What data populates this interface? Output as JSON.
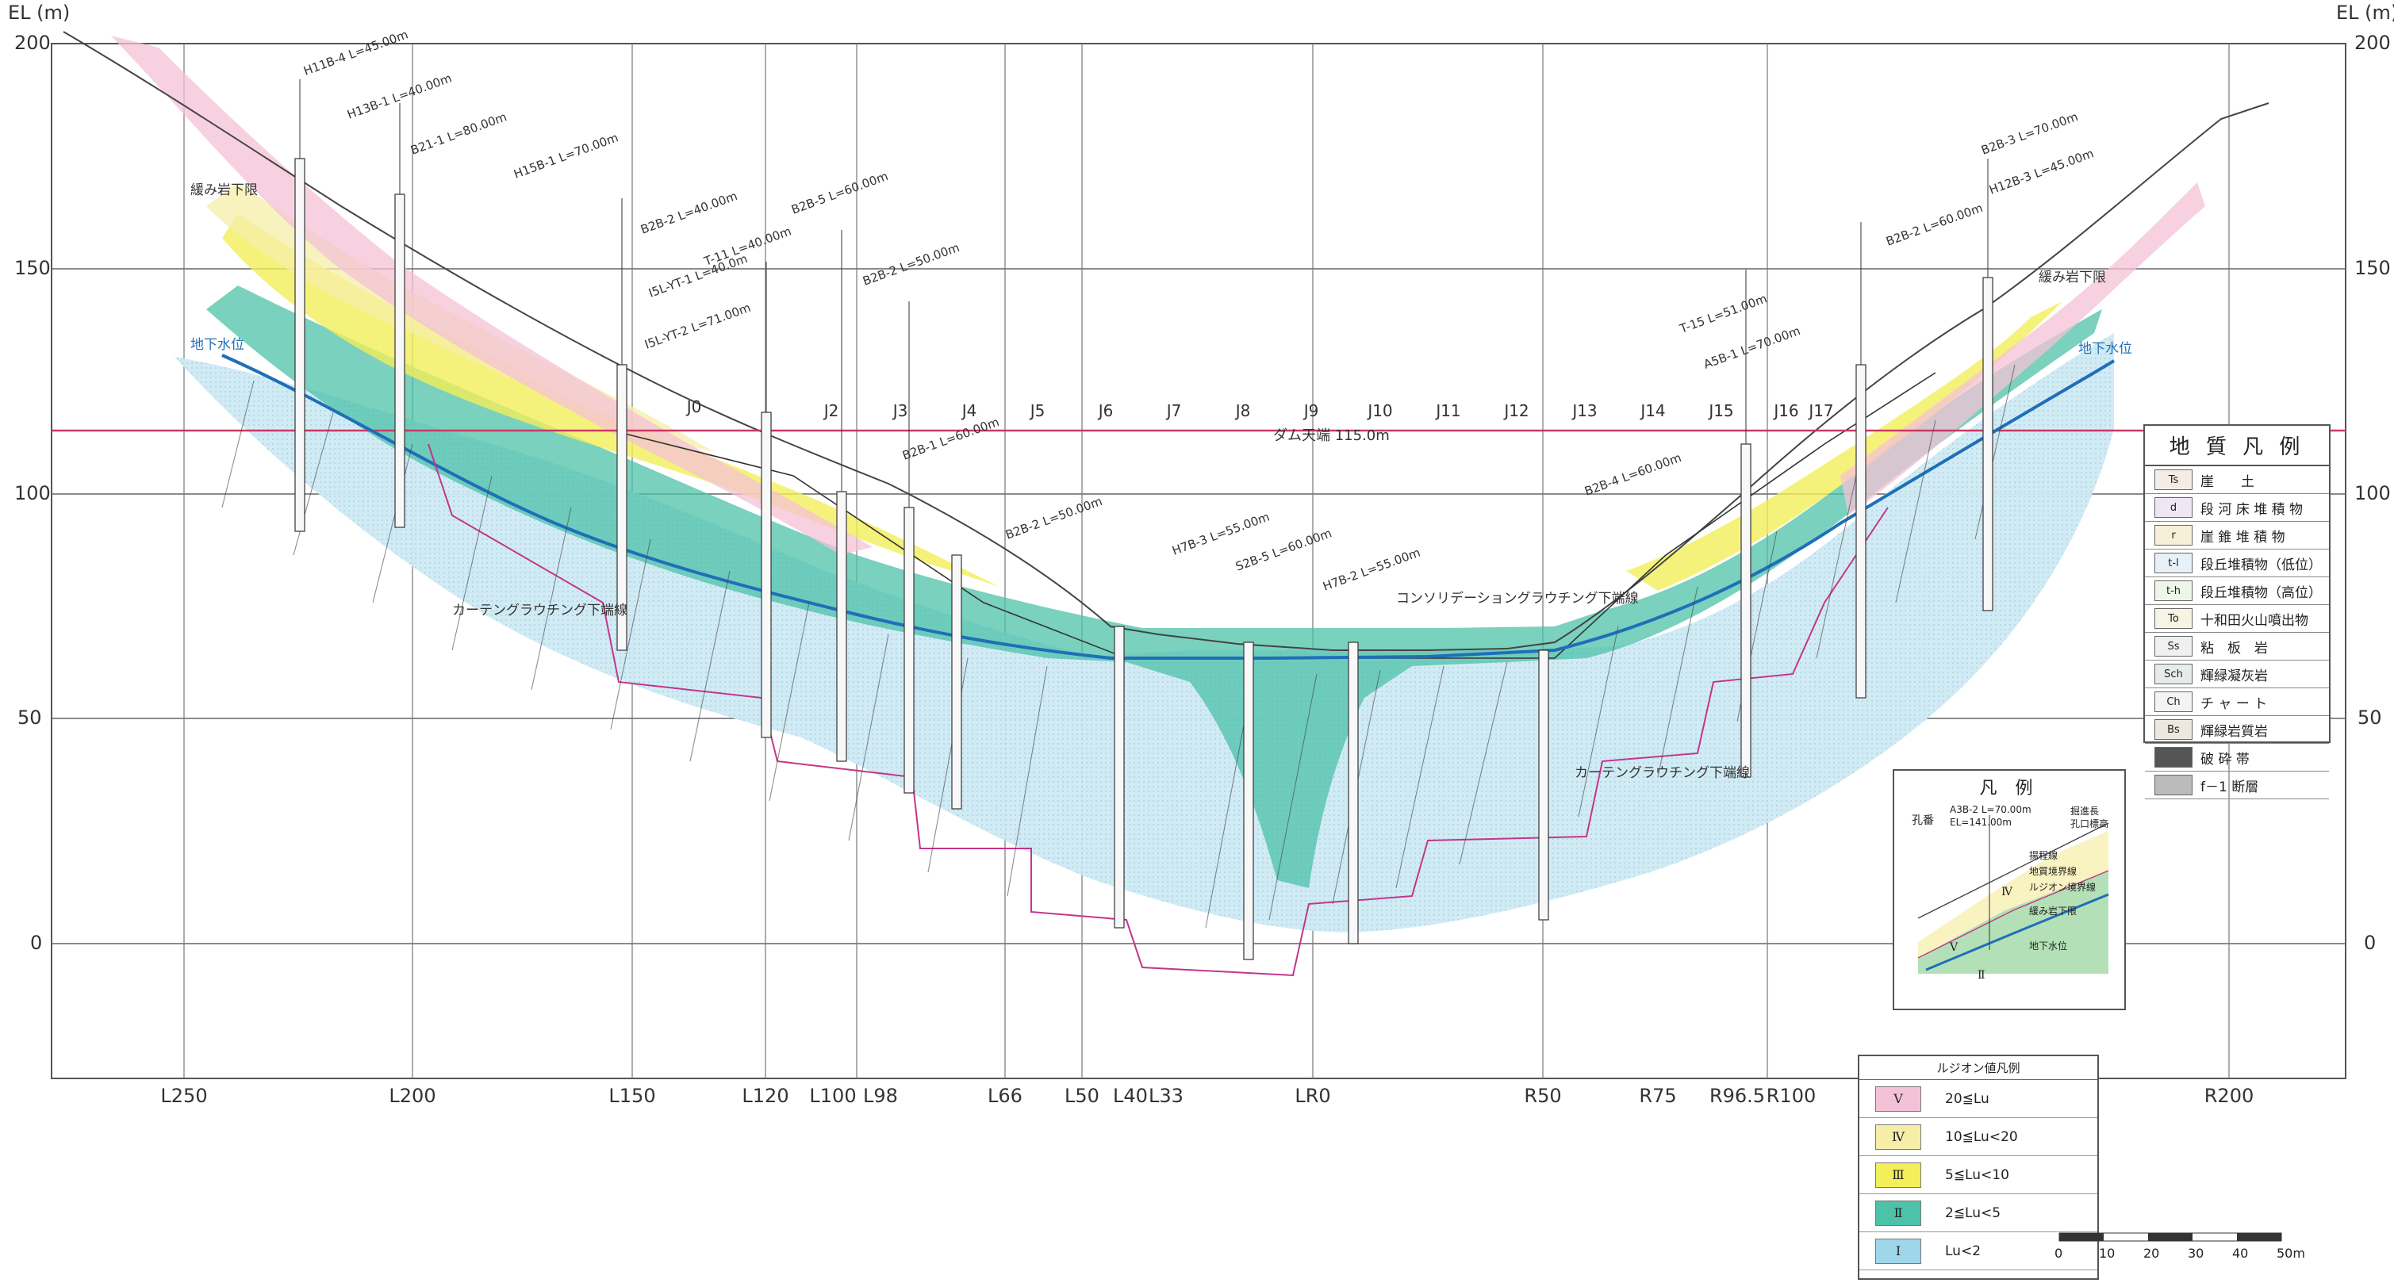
{
  "axis": {
    "unit_label": "EL (m)",
    "ticks": [
      "200",
      "150",
      "100",
      "50",
      "0"
    ]
  },
  "stations": [
    "L250",
    "L200",
    "L150",
    "L120",
    "L100",
    "L98",
    "L66",
    "L50",
    "L40",
    "L33",
    "LR0",
    "R50",
    "R75",
    "R96.5",
    "R100",
    "R200"
  ],
  "joints": [
    "J0",
    "J2",
    "J3",
    "J4",
    "J5",
    "J6",
    "J7",
    "J8",
    "J9",
    "J10",
    "J11",
    "J12",
    "J13",
    "J14",
    "J15",
    "J16",
    "J17"
  ],
  "dam_crest_label": "ダム天端 115.0m",
  "annotations": {
    "left_curtain": "カーテングラウチング下端線",
    "right_curtain": "カーテングラウチング下端線",
    "consolidation": "コンソリデーショングラウチング下端線",
    "groundwater_left": "地下水位",
    "groundwater_right": "地下水位",
    "loose_left": "緩み岩下限",
    "loose_right": "緩み岩下限"
  },
  "geo_legend": {
    "title": "地 質 凡 例",
    "rows": [
      {
        "sym": "Ts",
        "label": "崖　　土",
        "color": "#f4ece6"
      },
      {
        "sym": "d",
        "label": "段 河 床 堆 積 物",
        "color": "#efe6f4"
      },
      {
        "sym": "r",
        "label": "崖 錐 堆 積 物",
        "color": "#f6f0d8"
      },
      {
        "sym": "t-l",
        "label": "段丘堆積物（低位）",
        "color": "#e8f0f8"
      },
      {
        "sym": "t-h",
        "label": "段丘堆積物（高位）",
        "color": "#eef6e8"
      },
      {
        "sym": "To",
        "label": "十和田火山噴出物",
        "color": "#f8f4e4"
      },
      {
        "sym": "Ss",
        "label": "粘　板　岩",
        "color": "#f0f0f0"
      },
      {
        "sym": "Sch",
        "label": "輝緑凝灰岩",
        "color": "#e6ece8"
      },
      {
        "sym": "Ch",
        "label": "チ ャ ー ト",
        "color": "#f4f4f4"
      },
      {
        "sym": "Bs",
        "label": "輝緑岩質岩",
        "color": "#ece8e0"
      },
      {
        "sym": "",
        "label": "破 砕 帯",
        "color": "#555555"
      },
      {
        "sym": "",
        "label": "f－1 断層",
        "color": "#bbbbbb"
      }
    ]
  },
  "sample_legend": {
    "title": "凡 例",
    "hole_label": "孔番",
    "hole_sample": "A3B-2 L=70.00m",
    "elev_sample": "EL=141.00m",
    "length_label": "掘進長",
    "elev_label": "孔口標高",
    "lines": [
      "揚程線",
      "地質境界線",
      "ルジオン境界線",
      "緩み岩下限",
      "地下水位"
    ],
    "numeral_iv": "Ⅳ",
    "numeral_v": "Ⅴ",
    "numeral_ii": "Ⅱ"
  },
  "lu_legend": {
    "title": "ルジオン値凡例",
    "rows": [
      {
        "num": "Ⅴ",
        "text": "20≦Lu",
        "color": "#f4c2d6"
      },
      {
        "num": "Ⅳ",
        "text": "10≦Lu<20",
        "color": "#f6eea8"
      },
      {
        "num": "Ⅲ",
        "text": "5≦Lu<10",
        "color": "#f2ef5a"
      },
      {
        "num": "Ⅱ",
        "text": "2≦Lu<5",
        "color": "#4cc2a8"
      },
      {
        "num": "Ⅰ",
        "text": "Lu<2",
        "color": "#9fd6ea"
      }
    ]
  },
  "scale": {
    "labels": [
      "0",
      "10",
      "20",
      "30",
      "40",
      "50m"
    ]
  },
  "borehole_labels": [
    "H11B-4 L=45.00m",
    "H13B-1 L=40.00m",
    "B21-1 L=80.00m",
    "H15B-1 L=70.00m",
    "B2B-2 L=40.00m",
    "T-11 L=40.00m",
    "I5L-YT-1 L=40.0m",
    "I5L-YT-2 L=71.00m",
    "B2B-5 L=60.00m",
    "B2B-2 L=50.00m",
    "B2B-1 L=60.00m",
    "B2B-2 L=50.00m",
    "H7B-3 L=55.00m",
    "S2B-5 L=60.00m",
    "H7B-2 L=55.00m",
    "B2B-4 L=60.00m",
    "T-15 L=51.00m",
    "A5B-1 L=70.00m",
    "B2B-2 L=60.00m",
    "H12B-3 L=45.00m",
    "B2B-3 L=70.00m"
  ],
  "colors": {
    "crest_line": "#c83a64",
    "groundwater": "#1f6fb8",
    "grid": "#555555"
  }
}
